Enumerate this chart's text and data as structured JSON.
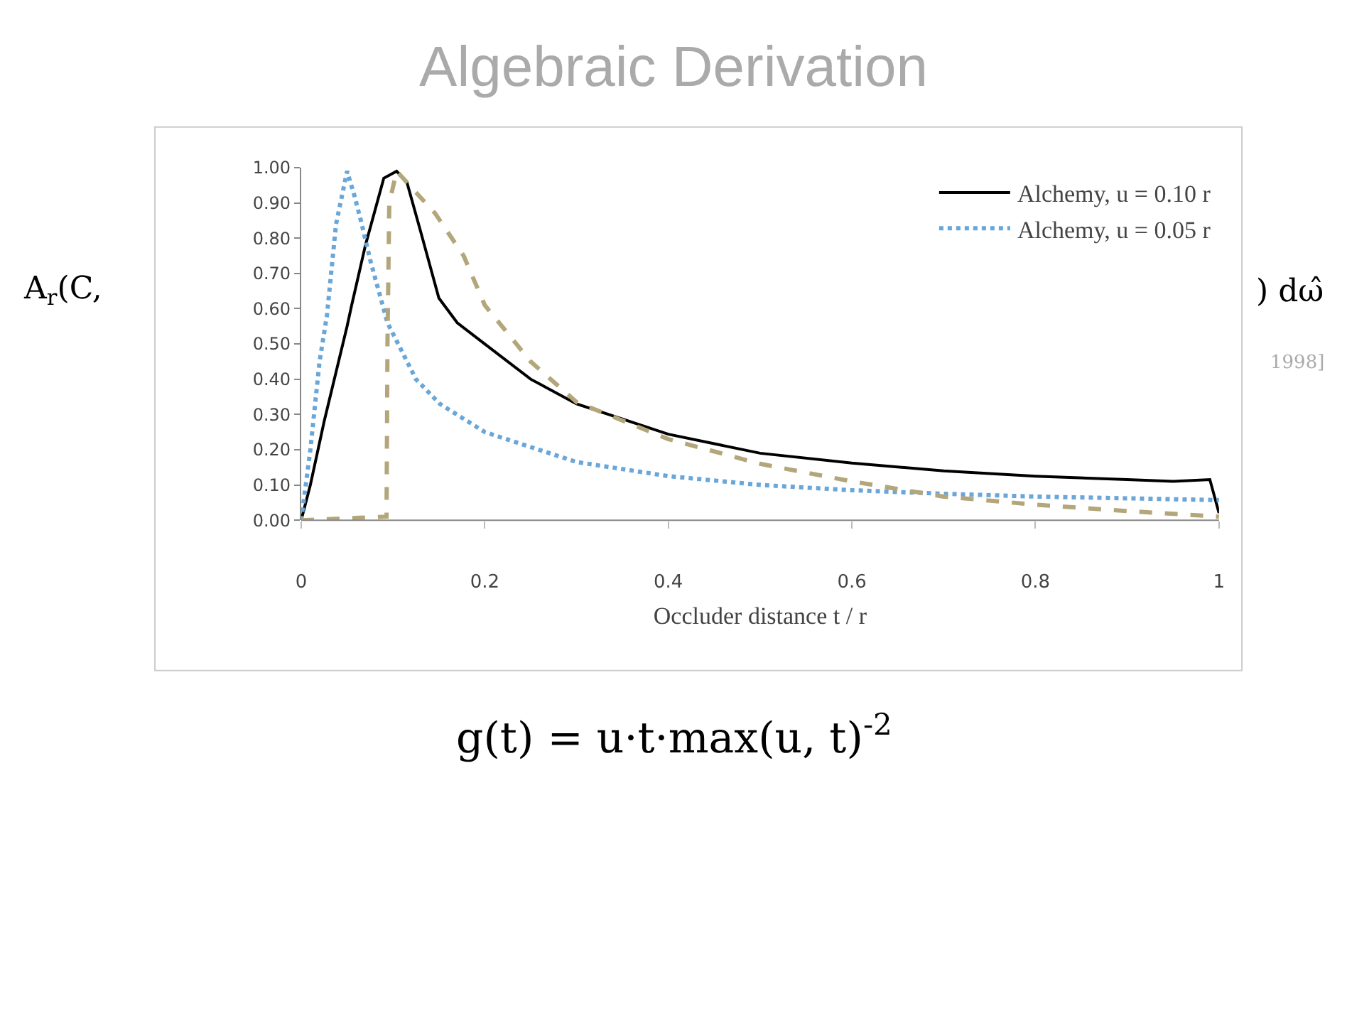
{
  "chart_data": {
    "type": "line",
    "title": "Algebraic Derivation",
    "xlabel": "Occluder distance t / r",
    "xlim": [
      0,
      1
    ],
    "xticks": [
      0,
      0.2,
      0.4,
      0.6,
      0.8,
      1
    ],
    "ylim": [
      0,
      1
    ],
    "yticks": [
      {
        "value": 0,
        "label": "0.00"
      },
      {
        "value": 0.1,
        "label": "0.10"
      },
      {
        "value": 0.2,
        "label": "0.20"
      },
      {
        "value": 0.3,
        "label": "0.30"
      },
      {
        "value": 0.4,
        "label": "0.40"
      },
      {
        "value": 0.5,
        "label": "0.50"
      },
      {
        "value": 0.6,
        "label": "0.60"
      },
      {
        "value": 0.7,
        "label": "0.70"
      },
      {
        "value": 0.8,
        "label": "0.80"
      },
      {
        "value": 0.9,
        "label": "0.90"
      },
      {
        "value": 1,
        "label": "1.00"
      }
    ],
    "grid": false,
    "legend": "top right",
    "marker": "none",
    "series": [
      {
        "name": "Alchemy, u = 0.10 r",
        "color": "#000000",
        "line_style": "solid",
        "x": [
          0,
          0.01,
          0.025,
          0.05,
          0.055,
          0.07,
          0.09,
          0.104,
          0.115,
          0.13,
          0.15,
          0.17,
          0.2,
          0.25,
          0.3,
          0.4,
          0.5,
          0.6,
          0.7,
          0.8,
          0.9,
          0.95,
          0.99,
          1
        ],
        "values": [
          0,
          0.1,
          0.28,
          0.55,
          0.61,
          0.78,
          0.97,
          0.99,
          0.96,
          0.82,
          0.63,
          0.56,
          0.5,
          0.4,
          0.33,
          0.244,
          0.19,
          0.162,
          0.14,
          0.125,
          0.115,
          0.11,
          0.115,
          0.02
        ]
      },
      {
        "name": "Alchemy, u = 0.05 r",
        "color": "#6aa6d8",
        "line_style": "dotted",
        "x": [
          0,
          0.01,
          0.02,
          0.028,
          0.038,
          0.05,
          0.058,
          0.065,
          0.076,
          0.094,
          0.125,
          0.151,
          0.2,
          0.3,
          0.4,
          0.5,
          0.6,
          0.7,
          0.8,
          0.9,
          1
        ],
        "values": [
          0,
          0.2,
          0.45,
          0.58,
          0.84,
          0.99,
          0.92,
          0.85,
          0.73,
          0.56,
          0.4,
          0.33,
          0.25,
          0.165,
          0.125,
          0.1,
          0.085,
          0.075,
          0.067,
          0.062,
          0.057
        ]
      },
      {
        "color": "#b3a67a",
        "line_style": "dashed",
        "x": [
          0,
          0.093,
          0.094,
          0.096,
          0.104,
          0.146,
          0.177,
          0.2,
          0.25,
          0.3,
          0.4,
          0.5,
          0.6,
          0.7,
          0.8,
          0.9,
          1
        ],
        "values": [
          0,
          0.01,
          0.5,
          0.9,
          0.99,
          0.87,
          0.75,
          0.61,
          0.45,
          0.335,
          0.23,
          0.16,
          0.11,
          0.067,
          0.044,
          0.026,
          0.01
        ]
      }
    ],
    "annotations": [
      "A$_{r}$(C,",
      ") dω̂",
      "1998]",
      "g(t) = u·t·max(u, t)$^{-2}$"
    ]
  }
}
